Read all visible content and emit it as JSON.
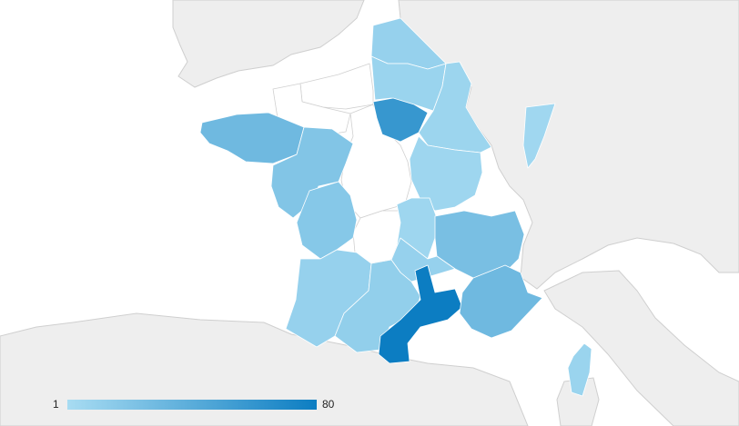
{
  "map": {
    "country": "France",
    "scale_min_color": "#a8dcf2",
    "scale_max_color": "#0c7dc2",
    "land_color": "#eeeeee",
    "water_color": "#ffffff",
    "legend": {
      "min_label": "1",
      "max_label": "80",
      "min": 1,
      "max": 80
    },
    "regions": [
      {
        "id": "nord-pas-de-calais",
        "value": 10
      },
      {
        "id": "picardie",
        "value": 8
      },
      {
        "id": "ile-de-france",
        "value": 58
      },
      {
        "id": "champagne-ardenne",
        "value": 7
      },
      {
        "id": "alsace",
        "value": 5
      },
      {
        "id": "bretagne",
        "value": 30
      },
      {
        "id": "pays-de-la-loire",
        "value": 20
      },
      {
        "id": "poitou-charentes",
        "value": 18
      },
      {
        "id": "bourgogne",
        "value": 6
      },
      {
        "id": "franche-comte-lorraine",
        "value": 6
      },
      {
        "id": "rhone-alpes",
        "value": 25
      },
      {
        "id": "auvergne",
        "value": 10
      },
      {
        "id": "aquitaine",
        "value": 10
      },
      {
        "id": "midi-pyrenees",
        "value": 12
      },
      {
        "id": "languedoc-roussillon",
        "value": 80
      },
      {
        "id": "provence-alpes-cote-dazur",
        "value": 30
      },
      {
        "id": "corse",
        "value": 8
      },
      {
        "id": "centre",
        "value": null
      },
      {
        "id": "limousin",
        "value": null
      },
      {
        "id": "haute-normandie",
        "value": null
      },
      {
        "id": "basse-normandie",
        "value": null
      }
    ]
  }
}
